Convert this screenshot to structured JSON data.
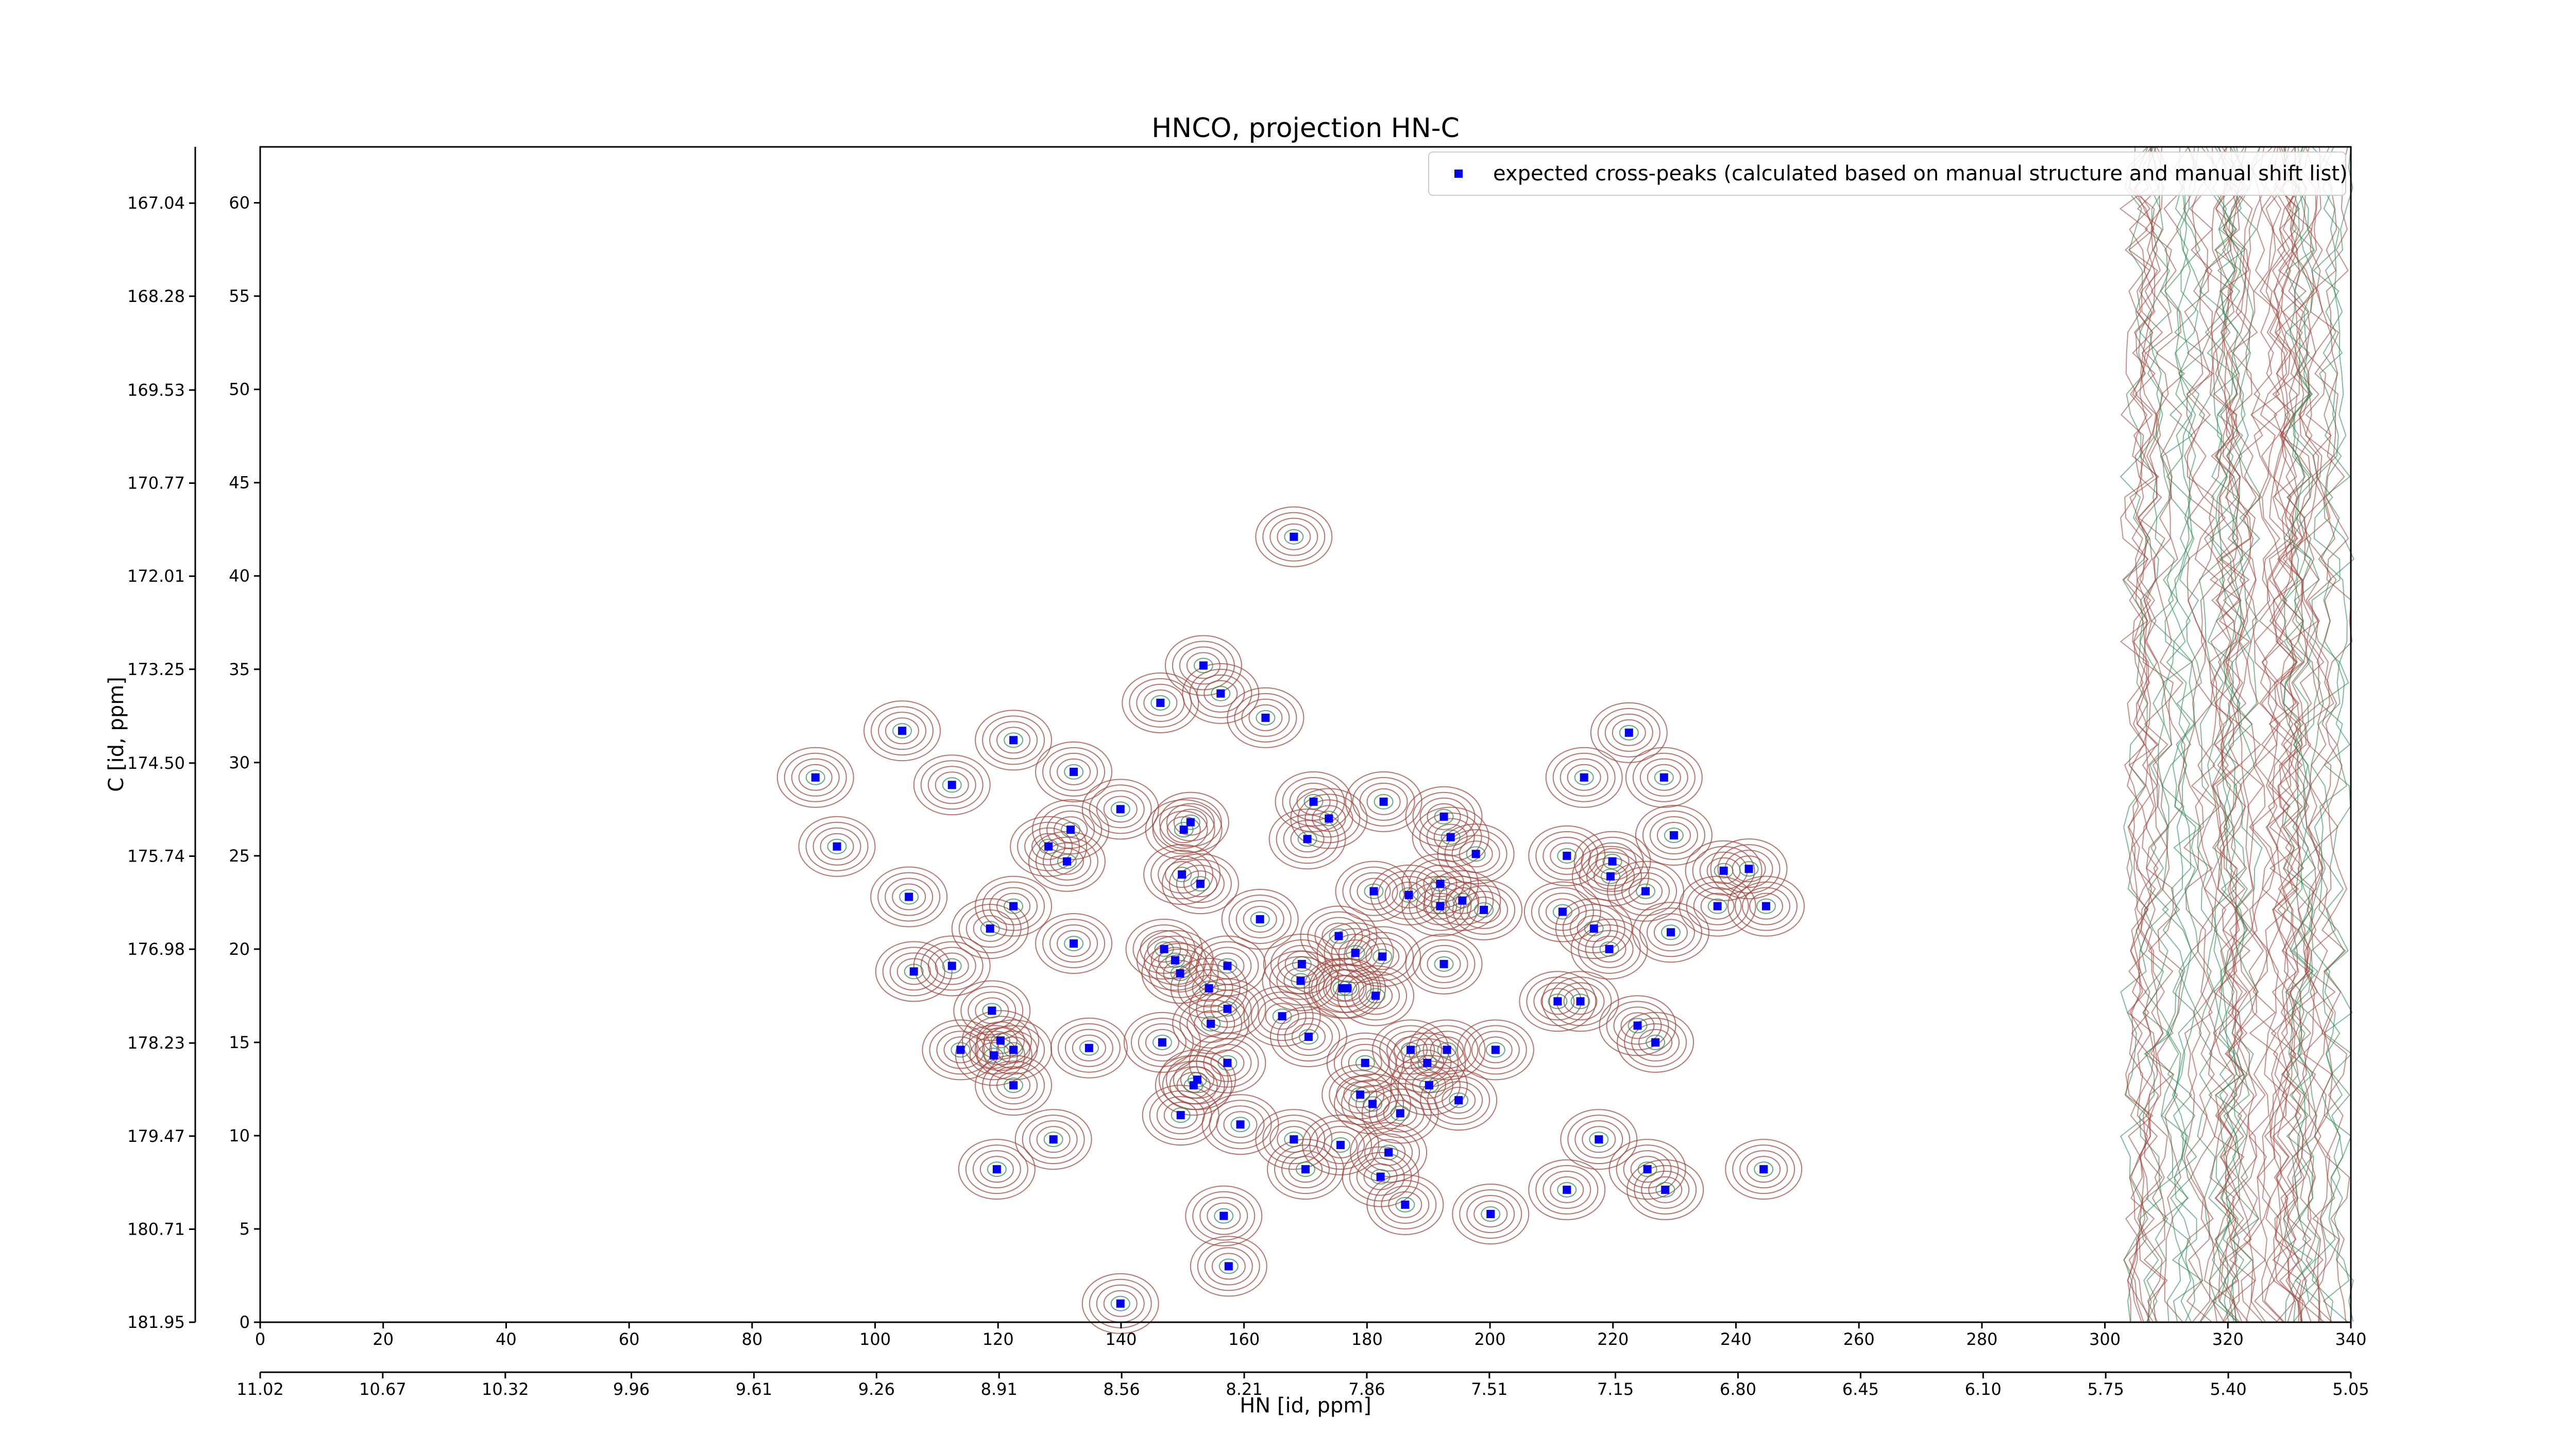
{
  "chart_data": {
    "type": "scatter",
    "title": "HNCO, projection HN-C",
    "xlabel": "HN [id, ppm]",
    "ylabel": "C [id, ppm]",
    "xlim": [
      0,
      340
    ],
    "xticks": [
      0,
      20,
      40,
      60,
      80,
      100,
      120,
      140,
      160,
      180,
      200,
      220,
      240,
      260,
      280,
      300,
      320,
      340
    ],
    "ylim": [
      0,
      63
    ],
    "yticks": [
      0,
      5,
      10,
      15,
      20,
      25,
      30,
      35,
      40,
      45,
      50,
      55,
      60
    ],
    "x2lim": [
      11.02,
      5.05
    ],
    "x2ticks": [
      11.02,
      10.67,
      10.32,
      9.96,
      9.61,
      9.26,
      8.91,
      8.56,
      8.21,
      7.86,
      7.51,
      7.15,
      {
        "value": 6.8,
        "label": "6.80"
      },
      6.45,
      {
        "value": 6.1,
        "label": "6.10"
      },
      5.75,
      {
        "value": 5.4,
        "label": "5.40"
      },
      5.05
    ],
    "y2lim": [
      181.95,
      166.29
    ],
    "y2ticks": [
      181.95,
      180.71,
      179.47,
      178.23,
      176.98,
      175.74,
      {
        "value": 174.5,
        "label": "174.50"
      },
      173.25,
      172.01,
      170.77,
      169.53,
      168.28,
      167.04
    ],
    "legend_loc": "upper right",
    "series": [
      {
        "name": "expected cross-peaks (calculated based on manual structure and manual shift list)",
        "color": "#0000ff",
        "x": [
          168.1,
          153.4,
          156.2,
          146.4,
          163.5,
          104.4,
          122.5,
          222.6,
          90.3,
          112.5,
          132.3,
          215.3,
          228.3,
          171.3,
          182.7,
          139.9,
          151.3,
          173.8,
          192.5,
          131.8,
          150.2,
          93.8,
          128.2,
          170.3,
          193.6,
          229.9,
          131.2,
          197.7,
          212.5,
          219.9,
          149.9,
          152.9,
          238.0,
          242.1,
          219.6,
          105.5,
          122.5,
          181.1,
          186.8,
          191.9,
          191.9,
          195.5,
          199.0,
          225.3,
          237.0,
          244.9,
          211.8,
          162.6,
          118.7,
          216.9,
          229.4,
          147.0,
          175.4,
          178.1,
          132.3,
          219.4,
          148.8,
          106.3,
          112.5,
          157.3,
          169.4,
          182.5,
          192.5,
          149.6,
          169.2,
          154.3,
          176.0,
          176.8,
          181.4,
          211.0,
          214.7,
          119.0,
          157.3,
          166.2,
          154.6,
          224.0,
          120.4,
          113.9,
          122.5,
          119.3,
          134.8,
          146.7,
          170.5,
          187.1,
          193.0,
          200.9,
          226.9,
          179.7,
          157.3,
          189.8,
          152.4,
          151.8,
          122.5,
          190.1,
          178.9,
          180.9,
          194.9,
          149.7,
          185.4,
          159.4,
          129.0,
          168.1,
          217.7,
          175.7,
          183.5,
          119.8,
          170.0,
          225.6,
          244.5,
          182.2,
          212.5,
          228.5,
          186.2,
          200.1,
          156.7,
          157.5,
          139.9
        ],
        "values": [
          42.1,
          35.2,
          33.7,
          33.2,
          32.4,
          31.7,
          31.2,
          31.6,
          29.2,
          28.8,
          29.5,
          29.2,
          29.2,
          27.9,
          27.9,
          27.5,
          26.8,
          27.0,
          27.1,
          26.4,
          26.4,
          25.5,
          25.5,
          25.9,
          26.0,
          26.1,
          24.7,
          25.1,
          25.0,
          24.7,
          24.0,
          23.5,
          24.2,
          24.3,
          23.9,
          22.8,
          22.3,
          23.1,
          22.9,
          23.5,
          22.3,
          22.6,
          22.1,
          23.1,
          22.3,
          22.3,
          22.0,
          21.6,
          21.1,
          21.1,
          20.9,
          20.0,
          20.7,
          19.8,
          20.3,
          20.0,
          19.4,
          18.8,
          19.1,
          19.1,
          19.2,
          19.6,
          19.2,
          18.7,
          18.3,
          17.9,
          17.9,
          17.9,
          17.5,
          17.2,
          17.2,
          16.7,
          16.8,
          16.4,
          16.0,
          15.9,
          15.1,
          14.6,
          14.6,
          14.3,
          14.7,
          15.0,
          15.3,
          14.6,
          14.6,
          14.6,
          15.0,
          13.9,
          13.9,
          13.9,
          13.0,
          12.7,
          12.7,
          12.7,
          12.2,
          11.7,
          11.9,
          11.1,
          11.2,
          10.6,
          9.8,
          9.8,
          9.8,
          9.5,
          9.1,
          8.2,
          8.2,
          8.2,
          8.2,
          7.8,
          7.1,
          7.1,
          6.3,
          5.8,
          5.7,
          3.0,
          1.0
        ]
      }
    ]
  }
}
